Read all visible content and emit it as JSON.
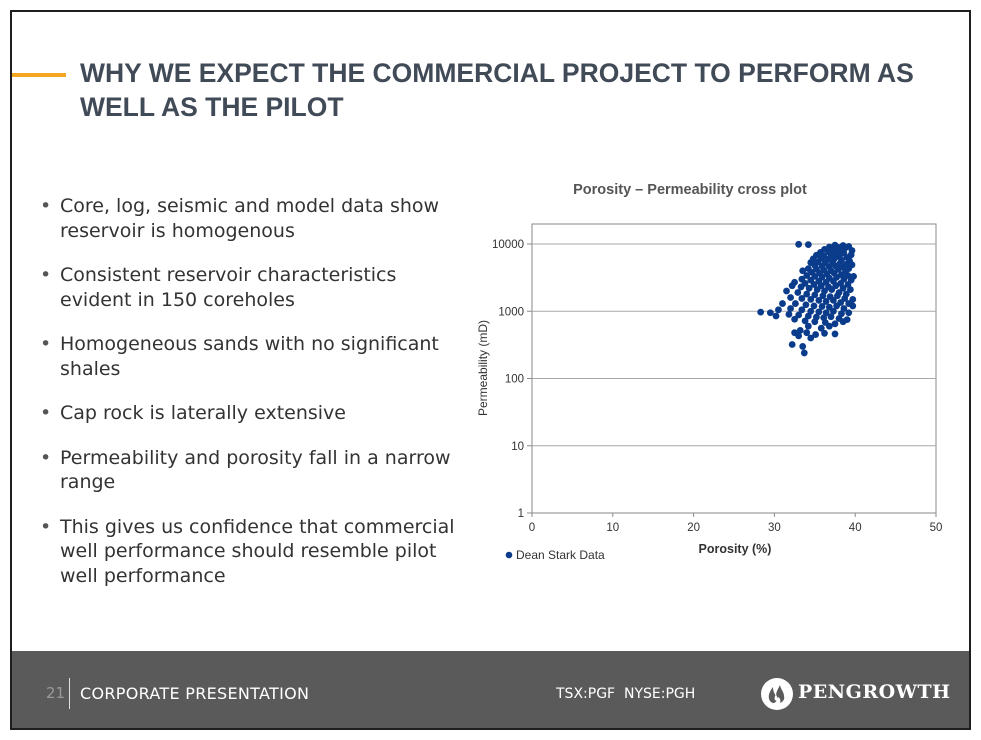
{
  "colors": {
    "accent": "#f5a623",
    "title": "#414a57",
    "footer": "#5a5a5a",
    "marker": "#0b3c8c"
  },
  "slide": {
    "title": "WHY WE EXPECT THE COMMERCIAL PROJECT TO PERFORM AS WELL AS THE PILOT"
  },
  "bullets": [
    "Core, log, seismic and model data show reservoir is homogenous",
    "Consistent reservoir characteristics evident in 150 coreholes",
    "Homogeneous sands with no significant shales",
    "Cap rock is laterally extensive",
    "Permeability and porosity fall in a narrow range",
    "This gives us confidence that commercial well performance should resemble pilot well performance"
  ],
  "footer": {
    "page_number": "21",
    "label": "CORPORATE PRESENTATION",
    "ticker": "TSX:PGF  NYSE:PGH",
    "logo_icon": "pengrowth-flame-icon",
    "logo_text": "PENGROWTH"
  },
  "chart_data": {
    "type": "scatter",
    "title": "Porosity – Permeability cross plot",
    "xlabel": "Porosity (%)",
    "ylabel": "Permeability (mD)",
    "xlim": [
      0,
      50
    ],
    "ylim": [
      1,
      10000
    ],
    "yscale": "log",
    "x_ticks": [
      "0",
      "10",
      "20",
      "30",
      "40",
      "50"
    ],
    "y_ticks": [
      "1",
      "10",
      "100",
      "1000",
      "10000"
    ],
    "grid": "horizontal",
    "legend_position": "bottom-left",
    "series": [
      {
        "name": "Dean Stark Data",
        "color": "#0b3c8c",
        "points": [
          [
            33.0,
            9900
          ],
          [
            34.2,
            9800
          ],
          [
            37.5,
            9600
          ],
          [
            38.5,
            9500
          ],
          [
            39.2,
            9200
          ],
          [
            36.8,
            9000
          ],
          [
            37.9,
            8900
          ],
          [
            38.8,
            8800
          ],
          [
            39.6,
            8000
          ],
          [
            36.2,
            8300
          ],
          [
            37.2,
            8200
          ],
          [
            38.2,
            7900
          ],
          [
            35.7,
            7500
          ],
          [
            36.7,
            7600
          ],
          [
            37.6,
            7400
          ],
          [
            38.6,
            7300
          ],
          [
            39.5,
            6900
          ],
          [
            35.2,
            6800
          ],
          [
            36.1,
            6600
          ],
          [
            37.0,
            6700
          ],
          [
            38.0,
            6500
          ],
          [
            39.0,
            6300
          ],
          [
            34.8,
            6000
          ],
          [
            35.8,
            6100
          ],
          [
            36.6,
            5900
          ],
          [
            37.4,
            6000
          ],
          [
            38.3,
            5800
          ],
          [
            39.3,
            5600
          ],
          [
            34.5,
            5300
          ],
          [
            35.4,
            5400
          ],
          [
            36.3,
            5200
          ],
          [
            37.2,
            5300
          ],
          [
            38.1,
            5100
          ],
          [
            38.9,
            5000
          ],
          [
            39.6,
            4900
          ],
          [
            35.0,
            4800
          ],
          [
            35.9,
            4700
          ],
          [
            36.8,
            4600
          ],
          [
            37.6,
            4700
          ],
          [
            38.5,
            4500
          ],
          [
            39.2,
            4300
          ],
          [
            34.2,
            4300
          ],
          [
            35.2,
            4200
          ],
          [
            36.1,
            4100
          ],
          [
            37.0,
            4000
          ],
          [
            37.9,
            4200
          ],
          [
            38.8,
            3900
          ],
          [
            33.5,
            4000
          ],
          [
            34.6,
            3800
          ],
          [
            35.6,
            3700
          ],
          [
            36.5,
            3600
          ],
          [
            37.4,
            3700
          ],
          [
            38.3,
            3500
          ],
          [
            39.1,
            3400
          ],
          [
            39.8,
            3300
          ],
          [
            34.0,
            3400
          ],
          [
            35.0,
            3300
          ],
          [
            35.9,
            3200
          ],
          [
            36.8,
            3100
          ],
          [
            37.7,
            3200
          ],
          [
            38.6,
            3000
          ],
          [
            39.5,
            2900
          ],
          [
            33.4,
            3000
          ],
          [
            34.5,
            2900
          ],
          [
            35.5,
            2800
          ],
          [
            36.4,
            2700
          ],
          [
            37.3,
            2800
          ],
          [
            38.2,
            2600
          ],
          [
            39.1,
            2500
          ],
          [
            32.5,
            2700
          ],
          [
            33.8,
            2600
          ],
          [
            34.9,
            2500
          ],
          [
            35.8,
            2400
          ],
          [
            36.7,
            2300
          ],
          [
            37.6,
            2400
          ],
          [
            38.5,
            2200
          ],
          [
            39.4,
            2100
          ],
          [
            32.2,
            2400
          ],
          [
            33.3,
            2300
          ],
          [
            34.3,
            2200
          ],
          [
            35.3,
            2100
          ],
          [
            36.2,
            2000
          ],
          [
            37.1,
            2100
          ],
          [
            38.0,
            1900
          ],
          [
            38.9,
            1800
          ],
          [
            31.5,
            2000
          ],
          [
            32.9,
            1900
          ],
          [
            34.0,
            1800
          ],
          [
            35.0,
            1750
          ],
          [
            36.0,
            1700
          ],
          [
            36.9,
            1650
          ],
          [
            37.8,
            1700
          ],
          [
            38.7,
            1550
          ],
          [
            39.7,
            1500
          ],
          [
            32.0,
            1600
          ],
          [
            33.4,
            1550
          ],
          [
            34.5,
            1500
          ],
          [
            35.5,
            1450
          ],
          [
            36.4,
            1400
          ],
          [
            37.3,
            1450
          ],
          [
            38.2,
            1350
          ],
          [
            39.2,
            1300
          ],
          [
            31.0,
            1300
          ],
          [
            32.6,
            1300
          ],
          [
            33.9,
            1250
          ],
          [
            34.9,
            1200
          ],
          [
            35.9,
            1180
          ],
          [
            36.8,
            1150
          ],
          [
            37.7,
            1200
          ],
          [
            38.6,
            1100
          ],
          [
            39.7,
            1200
          ],
          [
            30.5,
            1050
          ],
          [
            32.0,
            1100
          ],
          [
            33.4,
            1050
          ],
          [
            34.5,
            1000
          ],
          [
            35.5,
            980
          ],
          [
            36.4,
            950
          ],
          [
            37.3,
            1000
          ],
          [
            38.3,
            920
          ],
          [
            39.2,
            950
          ],
          [
            28.3,
            970
          ],
          [
            29.5,
            950
          ],
          [
            30.2,
            850
          ],
          [
            31.8,
            900
          ],
          [
            33.0,
            880
          ],
          [
            34.2,
            850
          ],
          [
            35.2,
            820
          ],
          [
            36.1,
            800
          ],
          [
            37.0,
            830
          ],
          [
            38.0,
            780
          ],
          [
            39.0,
            750
          ],
          [
            32.5,
            760
          ],
          [
            33.8,
            720
          ],
          [
            35.0,
            700
          ],
          [
            36.3,
            680
          ],
          [
            37.5,
            650
          ],
          [
            38.5,
            700
          ],
          [
            34.2,
            600
          ],
          [
            35.8,
            560
          ],
          [
            36.8,
            600
          ],
          [
            32.5,
            480
          ],
          [
            33.2,
            520
          ],
          [
            34.0,
            480
          ],
          [
            35.1,
            450
          ],
          [
            36.2,
            470
          ],
          [
            37.5,
            460
          ],
          [
            33.0,
            430
          ],
          [
            34.5,
            400
          ],
          [
            32.2,
            320
          ],
          [
            33.5,
            300
          ],
          [
            33.7,
            240
          ]
        ]
      }
    ]
  }
}
